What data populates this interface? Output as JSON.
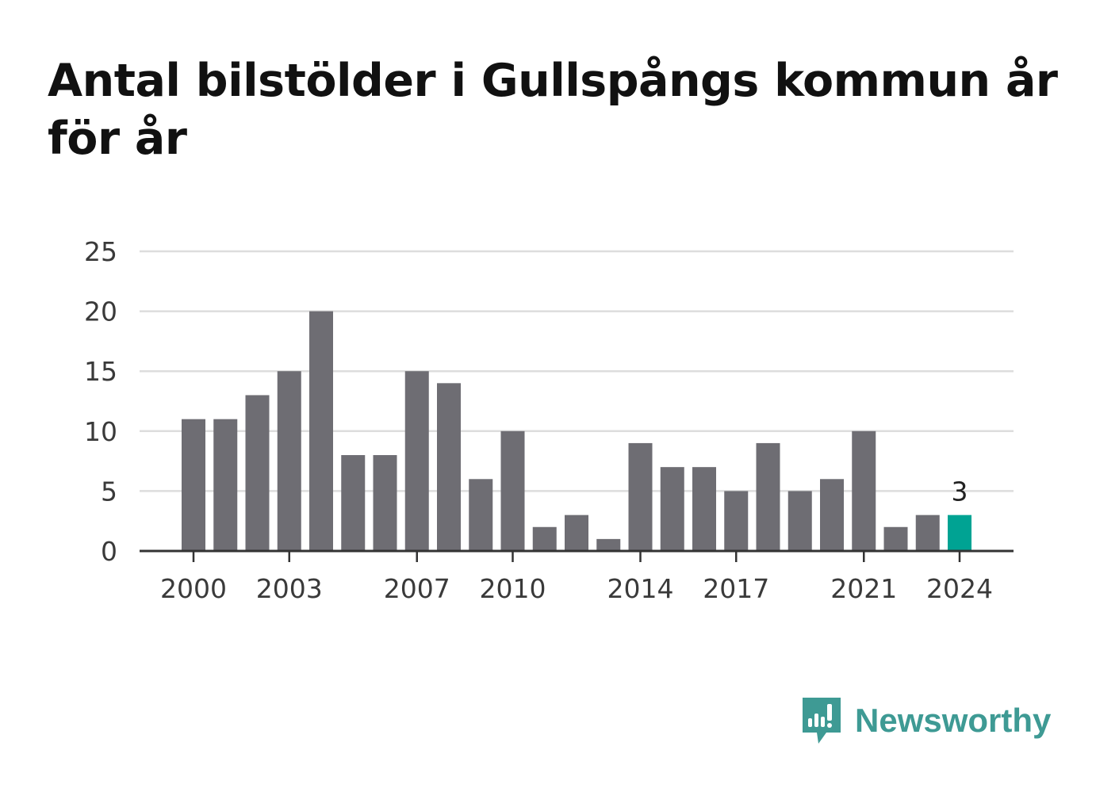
{
  "title": "Antal bilstölder i Gullspångs kommun år för år",
  "brand": {
    "name": "Newsworthy",
    "color": "#3e9a94",
    "icon": "newsworthy-logo-icon"
  },
  "colors": {
    "bar": "#6e6d73",
    "highlight": "#00a393",
    "grid": "#dddddd",
    "axis": "#333333"
  },
  "chart_data": {
    "type": "bar",
    "categories": [
      "2000",
      "2001",
      "2002",
      "2003",
      "2004",
      "2005",
      "2006",
      "2007",
      "2008",
      "2009",
      "2010",
      "2011",
      "2012",
      "2013",
      "2014",
      "2015",
      "2016",
      "2017",
      "2018",
      "2019",
      "2020",
      "2021",
      "2022",
      "2023",
      "2024"
    ],
    "values": [
      11,
      11,
      13,
      15,
      20,
      8,
      8,
      15,
      14,
      6,
      10,
      2,
      3,
      1,
      9,
      7,
      7,
      5,
      9,
      5,
      6,
      10,
      2,
      3,
      3
    ],
    "x_tick_labels": [
      "2000",
      "2003",
      "2007",
      "2010",
      "2014",
      "2017",
      "2021",
      "2024"
    ],
    "y_ticks": [
      0,
      5,
      10,
      15,
      20,
      25
    ],
    "ylim": [
      0,
      25
    ],
    "highlight_category": "2024",
    "data_labels": [
      {
        "category": "2024",
        "text": "3"
      }
    ],
    "grid": true,
    "xlabel": "",
    "ylabel": ""
  }
}
